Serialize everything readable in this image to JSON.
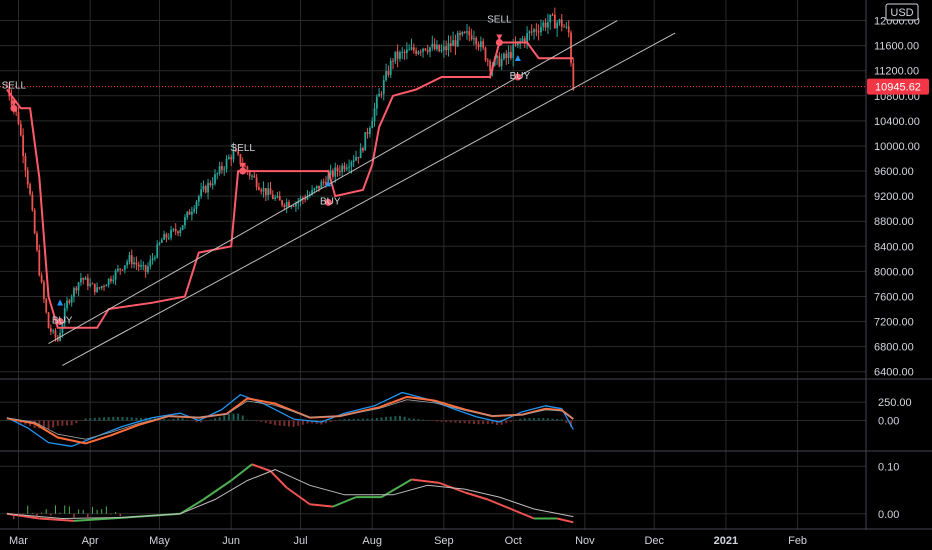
{
  "currency_badge": "USD",
  "last_price_label": "10945.62",
  "x_axis_labels": [
    "Mar",
    "Apr",
    "May",
    "Jun",
    "Jul",
    "Aug",
    "Sep",
    "Oct",
    "Nov",
    "Dec",
    "2021",
    "Feb"
  ],
  "colors": {
    "up": "#26a69a",
    "down": "#ef5350",
    "stop_line": "#ff5a6a",
    "trend_line": "#bfbfbf",
    "macd": "#2196f3",
    "signal": "#ff6d3a",
    "grid": "#2a2a2a",
    "axis_text": "#d1d4dc",
    "price_badge": "#f23645"
  },
  "chart_data": [
    {
      "type": "candlestick",
      "title": "",
      "y_tick_labels": [
        "12000.00",
        "11600.00",
        "11200.00",
        "10800.00",
        "10400.00",
        "10000.00",
        "9600.00",
        "9200.00",
        "8800.00",
        "8400.00",
        "8000.00",
        "7600.00",
        "7200.00",
        "6800.00",
        "6400.00"
      ],
      "ylim": [
        6300,
        12200
      ],
      "x_tick_labels": [
        "Mar",
        "Apr",
        "May",
        "Jun",
        "Jul",
        "Aug",
        "Sep",
        "Oct",
        "Nov",
        "Dec",
        "2021",
        "Feb"
      ],
      "close_path": [
        [
          "2020-02-25",
          10950
        ],
        [
          "2020-03-01",
          10400
        ],
        [
          "2020-03-06",
          9200
        ],
        [
          "2020-03-10",
          8000
        ],
        [
          "2020-03-14",
          7100
        ],
        [
          "2020-03-18",
          6900
        ],
        [
          "2020-03-22",
          7500
        ],
        [
          "2020-03-28",
          7900
        ],
        [
          "2020-04-04",
          7700
        ],
        [
          "2020-04-10",
          7900
        ],
        [
          "2020-04-18",
          8200
        ],
        [
          "2020-04-25",
          8000
        ],
        [
          "2020-05-02",
          8500
        ],
        [
          "2020-05-10",
          8700
        ],
        [
          "2020-05-18",
          9200
        ],
        [
          "2020-05-25",
          9500
        ],
        [
          "2020-06-02",
          9900
        ],
        [
          "2020-06-08",
          9600
        ],
        [
          "2020-06-15",
          9300
        ],
        [
          "2020-06-22",
          9100
        ],
        [
          "2020-06-29",
          9100
        ],
        [
          "2020-07-06",
          9250
        ],
        [
          "2020-07-13",
          9500
        ],
        [
          "2020-07-20",
          9700
        ],
        [
          "2020-07-27",
          9900
        ],
        [
          "2020-08-03",
          10700
        ],
        [
          "2020-08-10",
          11400
        ],
        [
          "2020-08-17",
          11500
        ],
        [
          "2020-08-24",
          11600
        ],
        [
          "2020-08-31",
          11500
        ],
        [
          "2020-09-07",
          11700
        ],
        [
          "2020-09-14",
          11800
        ],
        [
          "2020-09-21",
          11300
        ],
        [
          "2020-09-28",
          11400
        ],
        [
          "2020-10-05",
          11700
        ],
        [
          "2020-10-12",
          11900
        ],
        [
          "2020-10-17",
          12000
        ],
        [
          "2020-10-22",
          11950
        ],
        [
          "2020-10-25",
          11800
        ],
        [
          "2020-10-27",
          10945
        ]
      ],
      "trailing_stop": [
        [
          "2020-02-25",
          10900
        ],
        [
          "2020-03-02",
          10600
        ],
        [
          "2020-03-06",
          10600
        ],
        [
          "2020-03-10",
          9500
        ],
        [
          "2020-03-14",
          7600
        ],
        [
          "2020-03-18",
          7100
        ],
        [
          "2020-04-04",
          7100
        ],
        [
          "2020-04-09",
          7400
        ],
        [
          "2020-04-28",
          7500
        ],
        [
          "2020-05-12",
          7600
        ],
        [
          "2020-05-18",
          8300
        ],
        [
          "2020-06-01",
          8400
        ],
        [
          "2020-06-04",
          9600
        ],
        [
          "2020-07-13",
          9600
        ],
        [
          "2020-07-16",
          9200
        ],
        [
          "2020-07-28",
          9300
        ],
        [
          "2020-08-01",
          9700
        ],
        [
          "2020-08-04",
          10300
        ],
        [
          "2020-08-10",
          10800
        ],
        [
          "2020-08-20",
          10900
        ],
        [
          "2020-08-31",
          11100
        ],
        [
          "2020-09-21",
          11100
        ],
        [
          "2020-09-25",
          11650
        ],
        [
          "2020-10-07",
          11650
        ],
        [
          "2020-10-12",
          11400
        ],
        [
          "2020-10-27",
          11400
        ]
      ],
      "trend_lines": [
        {
          "from": [
            "2020-03-14",
            6850
          ],
          "to": [
            "2020-11-15",
            12000
          ]
        },
        {
          "from": [
            "2020-03-20",
            6500
          ],
          "to": [
            "2020-12-10",
            11800
          ]
        }
      ],
      "signals": [
        {
          "label": "SELL",
          "date": "2020-02-28",
          "price": 10600
        },
        {
          "label": "BUY",
          "date": "2020-03-19",
          "price": 7200
        },
        {
          "label": "SELL",
          "date": "2020-06-06",
          "price": 9600
        },
        {
          "label": "BUY",
          "date": "2020-07-13",
          "price": 9100
        },
        {
          "label": "SELL",
          "date": "2020-09-25",
          "price": 11650
        },
        {
          "label": "BUY",
          "date": "2020-10-03",
          "price": 11100
        }
      ],
      "last_price": 10945.62
    },
    {
      "type": "line",
      "title": "",
      "y_tick_labels": [
        "250.00",
        "0.00"
      ],
      "ylim": [
        -400,
        550
      ],
      "series": [
        {
          "values": [
            [
              "2020-02-25",
              40
            ],
            [
              "2020-03-05",
              -100
            ],
            [
              "2020-03-14",
              -300
            ],
            [
              "2020-03-24",
              -350
            ],
            [
              "2020-04-05",
              -200
            ],
            [
              "2020-04-15",
              -80
            ],
            [
              "2020-04-28",
              40
            ],
            [
              "2020-05-10",
              100
            ],
            [
              "2020-05-18",
              0
            ],
            [
              "2020-05-28",
              150
            ],
            [
              "2020-06-05",
              350
            ],
            [
              "2020-06-15",
              230
            ],
            [
              "2020-06-28",
              20
            ],
            [
              "2020-07-10",
              -20
            ],
            [
              "2020-07-20",
              100
            ],
            [
              "2020-08-02",
              200
            ],
            [
              "2020-08-14",
              380
            ],
            [
              "2020-08-26",
              280
            ],
            [
              "2020-09-06",
              150
            ],
            [
              "2020-09-15",
              50
            ],
            [
              "2020-09-25",
              -20
            ],
            [
              "2020-10-05",
              120
            ],
            [
              "2020-10-15",
              200
            ],
            [
              "2020-10-22",
              160
            ],
            [
              "2020-10-27",
              -120
            ]
          ]
        },
        {
          "values": [
            [
              "2020-02-25",
              30
            ],
            [
              "2020-03-08",
              -40
            ],
            [
              "2020-03-18",
              -230
            ],
            [
              "2020-03-30",
              -310
            ],
            [
              "2020-04-10",
              -200
            ],
            [
              "2020-04-22",
              -60
            ],
            [
              "2020-05-05",
              60
            ],
            [
              "2020-05-18",
              40
            ],
            [
              "2020-05-30",
              90
            ],
            [
              "2020-06-08",
              300
            ],
            [
              "2020-06-20",
              230
            ],
            [
              "2020-07-05",
              40
            ],
            [
              "2020-07-18",
              60
            ],
            [
              "2020-08-04",
              180
            ],
            [
              "2020-08-16",
              320
            ],
            [
              "2020-08-28",
              270
            ],
            [
              "2020-09-10",
              150
            ],
            [
              "2020-09-22",
              60
            ],
            [
              "2020-10-05",
              80
            ],
            [
              "2020-10-15",
              160
            ],
            [
              "2020-10-22",
              140
            ],
            [
              "2020-10-27",
              20
            ]
          ]
        }
      ]
    },
    {
      "type": "line",
      "title": "",
      "y_tick_labels": [
        "0.10",
        "0.00"
      ],
      "ylim": [
        -0.03,
        0.13
      ],
      "series": [
        {
          "values": [
            [
              "2020-02-25",
              0.0
            ],
            [
              "2020-03-10",
              -0.01
            ],
            [
              "2020-03-25",
              -0.015
            ],
            [
              "2020-04-10",
              -0.01
            ],
            [
              "2020-04-25",
              -0.005
            ],
            [
              "2020-05-10",
              0.0
            ],
            [
              "2020-05-20",
              0.03
            ],
            [
              "2020-06-01",
              0.07
            ],
            [
              "2020-06-10",
              0.104
            ],
            [
              "2020-06-18",
              0.09
            ],
            [
              "2020-06-25",
              0.055
            ],
            [
              "2020-07-05",
              0.02
            ],
            [
              "2020-07-15",
              0.015
            ],
            [
              "2020-07-25",
              0.035
            ],
            [
              "2020-08-05",
              0.035
            ],
            [
              "2020-08-18",
              0.072
            ],
            [
              "2020-08-30",
              0.065
            ],
            [
              "2020-09-10",
              0.045
            ],
            [
              "2020-09-20",
              0.03
            ],
            [
              "2020-09-30",
              0.01
            ],
            [
              "2020-10-10",
              -0.01
            ],
            [
              "2020-10-20",
              -0.01
            ],
            [
              "2020-10-27",
              -0.018
            ]
          ]
        },
        {
          "values": [
            [
              "2020-02-25",
              0.0
            ],
            [
              "2020-03-20",
              -0.01
            ],
            [
              "2020-04-15",
              -0.008
            ],
            [
              "2020-05-10",
              0.0
            ],
            [
              "2020-05-25",
              0.03
            ],
            [
              "2020-06-08",
              0.07
            ],
            [
              "2020-06-20",
              0.093
            ],
            [
              "2020-07-05",
              0.06
            ],
            [
              "2020-07-20",
              0.04
            ],
            [
              "2020-08-10",
              0.04
            ],
            [
              "2020-08-25",
              0.06
            ],
            [
              "2020-09-10",
              0.052
            ],
            [
              "2020-09-25",
              0.035
            ],
            [
              "2020-10-10",
              0.01
            ],
            [
              "2020-10-27",
              -0.006
            ]
          ]
        }
      ]
    }
  ]
}
